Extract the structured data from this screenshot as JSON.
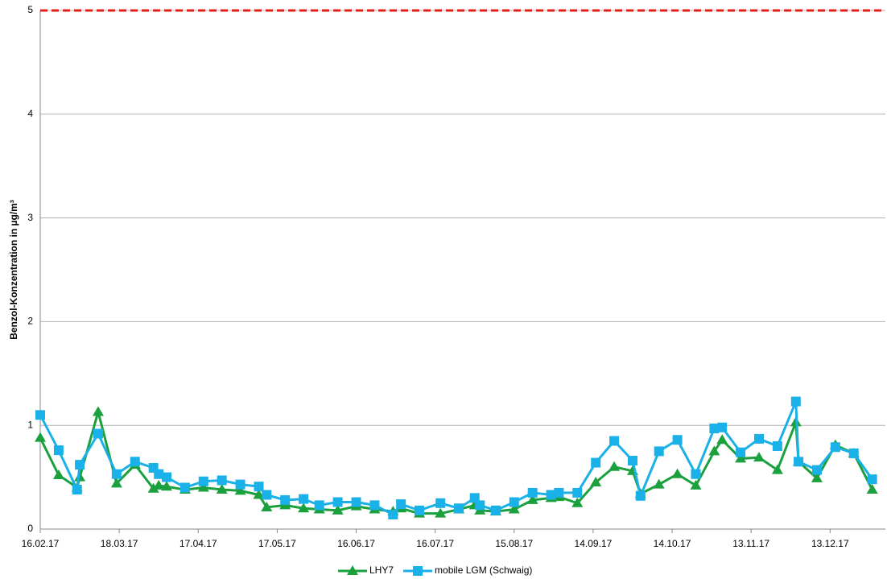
{
  "chart_data": {
    "type": "line",
    "y_label": "Benzol-Konzentration in µg/m³",
    "x": [
      "2017-02-16",
      "2017-02-23",
      "2017-03-02",
      "2017-03-03",
      "2017-03-10",
      "2017-03-17",
      "2017-03-24",
      "2017-03-31",
      "2017-04-02",
      "2017-04-05",
      "2017-04-12",
      "2017-04-19",
      "2017-04-26",
      "2017-05-03",
      "2017-05-10",
      "2017-05-13",
      "2017-05-20",
      "2017-05-27",
      "2017-06-02",
      "2017-06-09",
      "2017-06-16",
      "2017-06-23",
      "2017-06-30",
      "2017-07-03",
      "2017-07-10",
      "2017-07-18",
      "2017-07-25",
      "2017-07-31",
      "2017-08-02",
      "2017-08-08",
      "2017-08-15",
      "2017-08-22",
      "2017-08-29",
      "2017-09-01",
      "2017-09-08",
      "2017-09-15",
      "2017-09-22",
      "2017-09-29",
      "2017-10-02",
      "2017-10-09",
      "2017-10-16",
      "2017-10-23",
      "2017-10-30",
      "2017-11-02",
      "2017-11-09",
      "2017-11-16",
      "2017-11-23",
      "2017-11-30",
      "2017-12-01",
      "2017-12-08",
      "2017-12-15",
      "2017-12-22",
      "2017-12-29"
    ],
    "series": [
      {
        "name": "LHY7",
        "color": "#1aa03c",
        "marker": "triangle",
        "values": [
          0.88,
          0.52,
          0.4,
          0.5,
          1.13,
          0.44,
          0.62,
          0.39,
          0.42,
          0.41,
          0.38,
          0.4,
          0.38,
          0.37,
          0.33,
          0.21,
          0.23,
          0.2,
          0.19,
          0.18,
          0.22,
          0.19,
          0.17,
          0.2,
          0.15,
          0.15,
          0.19,
          0.23,
          0.18,
          0.17,
          0.19,
          0.28,
          0.3,
          0.31,
          0.25,
          0.45,
          0.6,
          0.56,
          0.34,
          0.43,
          0.53,
          0.42,
          0.75,
          0.86,
          0.68,
          0.69,
          0.57,
          1.03,
          0.65,
          0.49,
          0.81,
          0.73,
          0.38
        ]
      },
      {
        "name": "mobile LGM (Schwaig)",
        "color": "#1ab0e8",
        "marker": "square",
        "values": [
          1.1,
          0.76,
          0.38,
          0.62,
          0.92,
          0.53,
          0.65,
          0.59,
          0.53,
          0.5,
          0.4,
          0.46,
          0.47,
          0.43,
          0.41,
          0.33,
          0.28,
          0.29,
          0.23,
          0.26,
          0.26,
          0.23,
          0.14,
          0.24,
          0.18,
          0.25,
          0.2,
          0.3,
          0.23,
          0.18,
          0.26,
          0.35,
          0.33,
          0.35,
          0.35,
          0.64,
          0.85,
          0.66,
          0.32,
          0.75,
          0.86,
          0.53,
          0.97,
          0.98,
          0.74,
          0.87,
          0.8,
          1.23,
          0.65,
          0.57,
          0.79,
          0.73,
          0.48
        ]
      }
    ],
    "threshold": {
      "value": 5,
      "color": "#e0201e"
    },
    "xlim": [
      "2017-02-16",
      "2018-01-03"
    ],
    "xticks": [
      {
        "value": "2017-02-16",
        "label": "16.02.17"
      },
      {
        "value": "2017-03-18",
        "label": "18.03.17"
      },
      {
        "value": "2017-04-17",
        "label": "17.04.17"
      },
      {
        "value": "2017-05-17",
        "label": "17.05.17"
      },
      {
        "value": "2017-06-16",
        "label": "16.06.17"
      },
      {
        "value": "2017-07-16",
        "label": "16.07.17"
      },
      {
        "value": "2017-08-15",
        "label": "15.08.17"
      },
      {
        "value": "2017-09-14",
        "label": "14.09.17"
      },
      {
        "value": "2017-10-14",
        "label": "14.10.17"
      },
      {
        "value": "2017-11-13",
        "label": "13.11.17"
      },
      {
        "value": "2017-12-13",
        "label": "13.12.17"
      }
    ],
    "ylim": [
      0,
      5
    ],
    "yticks": [
      0,
      1,
      2,
      3,
      4,
      5
    ],
    "grid": true,
    "legend": "bottom"
  }
}
